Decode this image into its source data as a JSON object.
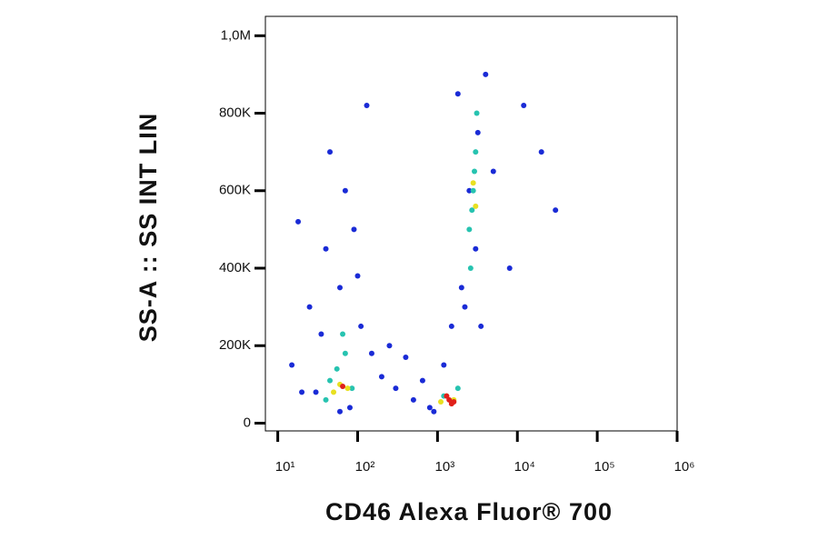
{
  "chart_data": {
    "type": "scatter",
    "x_label": "CD46 Alexa Fluor® 700",
    "y_label": "SS-A :: SS INT LIN",
    "log_x": true,
    "xlim": [
      7,
      1000000
    ],
    "xticks": [
      {
        "value": 10,
        "label": "10¹"
      },
      {
        "value": 100,
        "label": "10²"
      },
      {
        "value": 1000,
        "label": "10³"
      },
      {
        "value": 10000,
        "label": "10⁴"
      },
      {
        "value": 100000,
        "label": "10⁵"
      },
      {
        "value": 1000000,
        "label": "10⁶"
      }
    ],
    "ylim": [
      -20000,
      1050000
    ],
    "yticks": [
      0,
      {
        "value": 200000,
        "label": "200K"
      },
      {
        "value": 400000,
        "label": "400K"
      },
      {
        "value": 600000,
        "label": "600K"
      },
      {
        "value": 800000,
        "label": "800K"
      },
      {
        "value": 1000000,
        "label": "1,0M"
      }
    ],
    "series": [
      {
        "color": "#1a2bd6",
        "x": [
          15,
          25,
          40,
          70,
          110,
          150,
          30,
          60,
          90,
          200,
          300,
          500,
          800,
          1200,
          2000,
          3500,
          5000,
          8000,
          20000,
          30000,
          12000,
          18,
          45,
          130,
          250,
          650,
          1800,
          4000,
          2500,
          3000,
          2200,
          3200,
          1500,
          900,
          400,
          80,
          35,
          20,
          60,
          100
        ],
        "y": [
          150000,
          300000,
          450000,
          600000,
          250000,
          180000,
          80000,
          350000,
          500000,
          120000,
          90000,
          60000,
          40000,
          150000,
          350000,
          250000,
          650000,
          400000,
          700000,
          550000,
          820000,
          520000,
          700000,
          820000,
          200000,
          110000,
          850000,
          900000,
          600000,
          450000,
          300000,
          750000,
          250000,
          30000,
          170000,
          40000,
          230000,
          80000,
          30000,
          380000
        ]
      },
      {
        "color": "#27c3b0",
        "x": [
          55,
          70,
          45,
          85,
          2500,
          2800,
          3000,
          2600,
          3100,
          1200,
          1800,
          2700,
          2900,
          65,
          40
        ],
        "y": [
          140000,
          180000,
          110000,
          90000,
          500000,
          600000,
          700000,
          400000,
          800000,
          70000,
          90000,
          550000,
          650000,
          230000,
          60000
        ]
      },
      {
        "color": "#e8e020",
        "x": [
          60,
          50,
          75,
          1300,
          1600,
          2800,
          3000,
          1100
        ],
        "y": [
          100000,
          80000,
          90000,
          70000,
          60000,
          620000,
          560000,
          55000
        ]
      },
      {
        "color": "#e0201a",
        "x": [
          1400,
          1600,
          1300,
          1500,
          65
        ],
        "y": [
          60000,
          55000,
          70000,
          50000,
          95000
        ]
      }
    ]
  }
}
